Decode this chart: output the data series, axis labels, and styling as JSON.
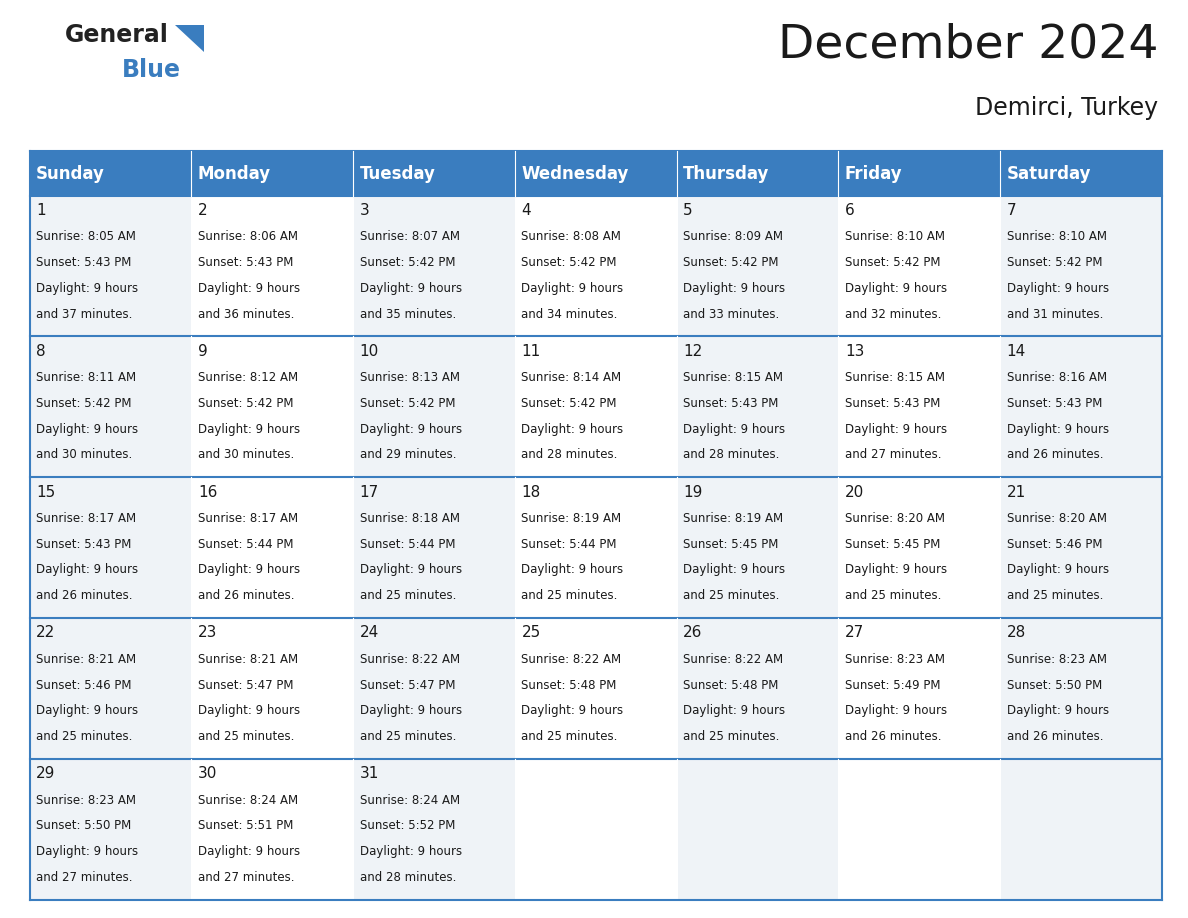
{
  "title": "December 2024",
  "subtitle": "Demirci, Turkey",
  "header_color": "#3a7dbf",
  "header_text_color": "#ffffff",
  "cell_bg_color": "#eff3f7",
  "border_color": "#3a7dbf",
  "text_color": "#1a1a1a",
  "days_of_week": [
    "Sunday",
    "Monday",
    "Tuesday",
    "Wednesday",
    "Thursday",
    "Friday",
    "Saturday"
  ],
  "calendar_data": [
    [
      {
        "day": 1,
        "sunrise": "8:05 AM",
        "sunset": "5:43 PM",
        "daylight": "9 hours and 37 minutes"
      },
      {
        "day": 2,
        "sunrise": "8:06 AM",
        "sunset": "5:43 PM",
        "daylight": "9 hours and 36 minutes"
      },
      {
        "day": 3,
        "sunrise": "8:07 AM",
        "sunset": "5:42 PM",
        "daylight": "9 hours and 35 minutes"
      },
      {
        "day": 4,
        "sunrise": "8:08 AM",
        "sunset": "5:42 PM",
        "daylight": "9 hours and 34 minutes"
      },
      {
        "day": 5,
        "sunrise": "8:09 AM",
        "sunset": "5:42 PM",
        "daylight": "9 hours and 33 minutes"
      },
      {
        "day": 6,
        "sunrise": "8:10 AM",
        "sunset": "5:42 PM",
        "daylight": "9 hours and 32 minutes"
      },
      {
        "day": 7,
        "sunrise": "8:10 AM",
        "sunset": "5:42 PM",
        "daylight": "9 hours and 31 minutes"
      }
    ],
    [
      {
        "day": 8,
        "sunrise": "8:11 AM",
        "sunset": "5:42 PM",
        "daylight": "9 hours and 30 minutes"
      },
      {
        "day": 9,
        "sunrise": "8:12 AM",
        "sunset": "5:42 PM",
        "daylight": "9 hours and 30 minutes"
      },
      {
        "day": 10,
        "sunrise": "8:13 AM",
        "sunset": "5:42 PM",
        "daylight": "9 hours and 29 minutes"
      },
      {
        "day": 11,
        "sunrise": "8:14 AM",
        "sunset": "5:42 PM",
        "daylight": "9 hours and 28 minutes"
      },
      {
        "day": 12,
        "sunrise": "8:15 AM",
        "sunset": "5:43 PM",
        "daylight": "9 hours and 28 minutes"
      },
      {
        "day": 13,
        "sunrise": "8:15 AM",
        "sunset": "5:43 PM",
        "daylight": "9 hours and 27 minutes"
      },
      {
        "day": 14,
        "sunrise": "8:16 AM",
        "sunset": "5:43 PM",
        "daylight": "9 hours and 26 minutes"
      }
    ],
    [
      {
        "day": 15,
        "sunrise": "8:17 AM",
        "sunset": "5:43 PM",
        "daylight": "9 hours and 26 minutes"
      },
      {
        "day": 16,
        "sunrise": "8:17 AM",
        "sunset": "5:44 PM",
        "daylight": "9 hours and 26 minutes"
      },
      {
        "day": 17,
        "sunrise": "8:18 AM",
        "sunset": "5:44 PM",
        "daylight": "9 hours and 25 minutes"
      },
      {
        "day": 18,
        "sunrise": "8:19 AM",
        "sunset": "5:44 PM",
        "daylight": "9 hours and 25 minutes"
      },
      {
        "day": 19,
        "sunrise": "8:19 AM",
        "sunset": "5:45 PM",
        "daylight": "9 hours and 25 minutes"
      },
      {
        "day": 20,
        "sunrise": "8:20 AM",
        "sunset": "5:45 PM",
        "daylight": "9 hours and 25 minutes"
      },
      {
        "day": 21,
        "sunrise": "8:20 AM",
        "sunset": "5:46 PM",
        "daylight": "9 hours and 25 minutes"
      }
    ],
    [
      {
        "day": 22,
        "sunrise": "8:21 AM",
        "sunset": "5:46 PM",
        "daylight": "9 hours and 25 minutes"
      },
      {
        "day": 23,
        "sunrise": "8:21 AM",
        "sunset": "5:47 PM",
        "daylight": "9 hours and 25 minutes"
      },
      {
        "day": 24,
        "sunrise": "8:22 AM",
        "sunset": "5:47 PM",
        "daylight": "9 hours and 25 minutes"
      },
      {
        "day": 25,
        "sunrise": "8:22 AM",
        "sunset": "5:48 PM",
        "daylight": "9 hours and 25 minutes"
      },
      {
        "day": 26,
        "sunrise": "8:22 AM",
        "sunset": "5:48 PM",
        "daylight": "9 hours and 25 minutes"
      },
      {
        "day": 27,
        "sunrise": "8:23 AM",
        "sunset": "5:49 PM",
        "daylight": "9 hours and 26 minutes"
      },
      {
        "day": 28,
        "sunrise": "8:23 AM",
        "sunset": "5:50 PM",
        "daylight": "9 hours and 26 minutes"
      }
    ],
    [
      {
        "day": 29,
        "sunrise": "8:23 AM",
        "sunset": "5:50 PM",
        "daylight": "9 hours and 27 minutes"
      },
      {
        "day": 30,
        "sunrise": "8:24 AM",
        "sunset": "5:51 PM",
        "daylight": "9 hours and 27 minutes"
      },
      {
        "day": 31,
        "sunrise": "8:24 AM",
        "sunset": "5:52 PM",
        "daylight": "9 hours and 28 minutes"
      },
      null,
      null,
      null,
      null
    ]
  ]
}
